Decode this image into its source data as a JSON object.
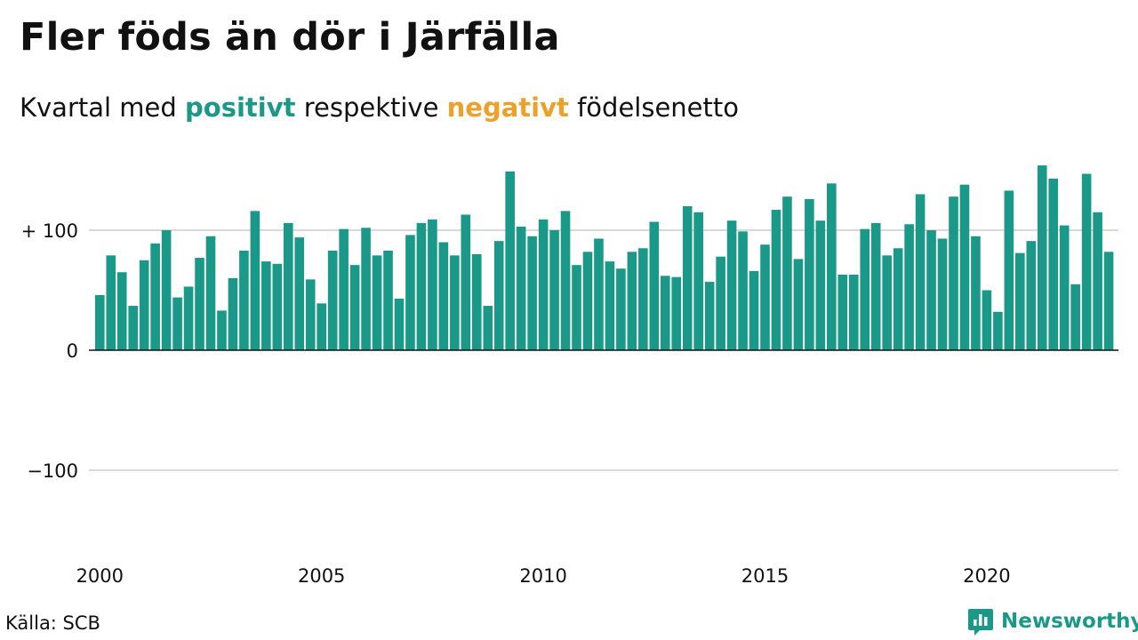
{
  "title": "Fler föds än dör i Järfälla",
  "subtitle": {
    "prefix": "Kvartal med ",
    "positive_word": "positivt",
    "middle": " respektive ",
    "negative_word": "negativt",
    "suffix": " födelsenetto"
  },
  "colors": {
    "positive": "#1a9988",
    "negative": "#eea12a",
    "text": "#111111",
    "grid": "#d9d9d9"
  },
  "source": "Källa: SCB",
  "brand": {
    "name": "Newsworthy",
    "icon": "newsworthy-chart-logo-icon"
  },
  "chart_data": {
    "type": "bar",
    "start_year": 2000,
    "quarters_per_year": 4,
    "ylim": [
      -175,
      155
    ],
    "yticks": [
      100,
      0,
      -100
    ],
    "ytick_labels": [
      "+ 100",
      "0",
      "−100"
    ],
    "xticks": [
      2000,
      2005,
      2010,
      2015,
      2020
    ],
    "grid": true,
    "values": [
      46,
      79,
      65,
      37,
      75,
      89,
      100,
      44,
      53,
      77,
      95,
      33,
      60,
      83,
      116,
      74,
      72,
      106,
      94,
      59,
      39,
      83,
      101,
      71,
      102,
      79,
      83,
      43,
      96,
      106,
      109,
      90,
      79,
      113,
      80,
      37,
      91,
      149,
      103,
      95,
      109,
      100,
      116,
      71,
      82,
      93,
      74,
      68,
      82,
      85,
      107,
      62,
      61,
      120,
      115,
      57,
      78,
      108,
      99,
      66,
      88,
      117,
      128,
      76,
      126,
      108,
      139,
      63,
      63,
      101,
      106,
      79,
      85,
      105,
      130,
      100,
      93,
      128,
      138,
      95,
      50,
      32,
      133,
      81,
      91,
      154,
      143,
      104,
      55,
      147,
      115,
      82
    ]
  }
}
